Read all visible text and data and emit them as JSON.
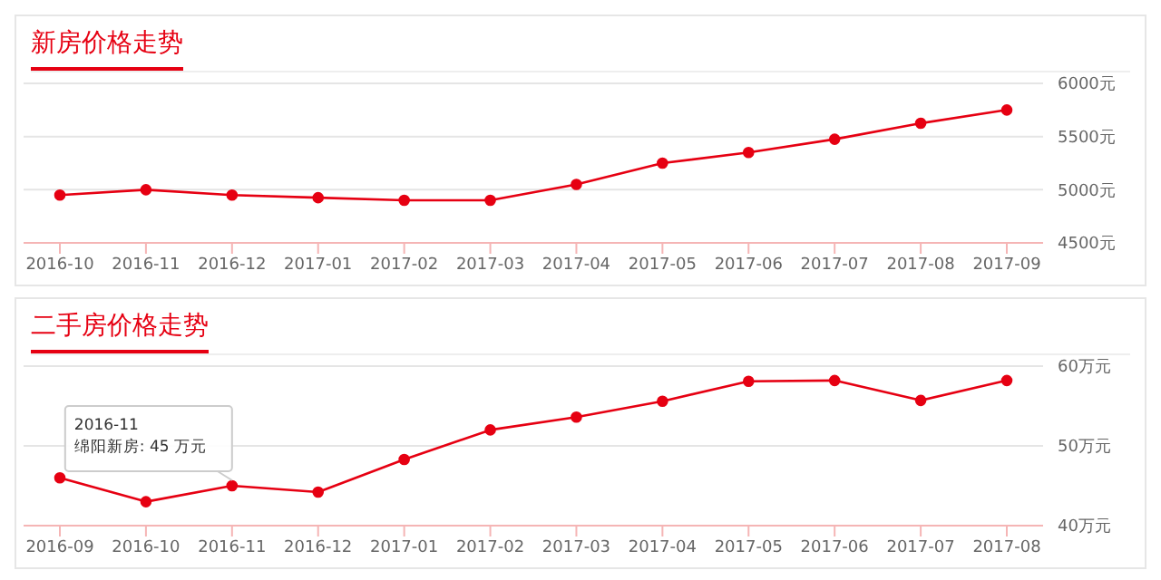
{
  "chart_data": [
    {
      "type": "line",
      "title": "新房价格走势",
      "categories": [
        "2016-10",
        "2016-11",
        "2016-12",
        "2017-01",
        "2017-02",
        "2017-03",
        "2017-04",
        "2017-05",
        "2017-06",
        "2017-07",
        "2017-08",
        "2017-09"
      ],
      "series": [
        {
          "color": "#e60012",
          "values": [
            4950,
            5000,
            4950,
            4925,
            4900,
            4900,
            5050,
            5250,
            5350,
            5475,
            5625,
            5750
          ]
        }
      ],
      "ylim": [
        4500,
        6000
      ],
      "yticks": [
        {
          "value": 4500,
          "label": "4500元"
        },
        {
          "value": 5000,
          "label": "5000元"
        },
        {
          "value": 5500,
          "label": "5500元"
        },
        {
          "value": 6000,
          "label": "6000元"
        }
      ],
      "grid": "y",
      "marker": "circle"
    },
    {
      "type": "line",
      "title": "二手房价格走势",
      "categories": [
        "2016-09",
        "2016-10",
        "2016-11",
        "2016-12",
        "2017-01",
        "2017-02",
        "2017-03",
        "2017-04",
        "2017-05",
        "2017-06",
        "2017-07",
        "2017-08"
      ],
      "series": [
        {
          "color": "#e60012",
          "values": [
            46,
            43,
            45,
            44.2,
            48.3,
            52,
            53.6,
            55.6,
            58.1,
            58.2,
            55.7,
            58.2
          ]
        }
      ],
      "ylim": [
        40,
        60
      ],
      "yticks": [
        {
          "value": 40,
          "label": "40万元"
        },
        {
          "value": 50,
          "label": "50万元"
        },
        {
          "value": 60,
          "label": "60万元"
        }
      ],
      "grid": "y",
      "marker": "circle",
      "annotations": [
        {
          "text": "2016-11\n绵阳新房: 45 万元",
          "x": "2016-11",
          "y": 45
        }
      ]
    }
  ]
}
